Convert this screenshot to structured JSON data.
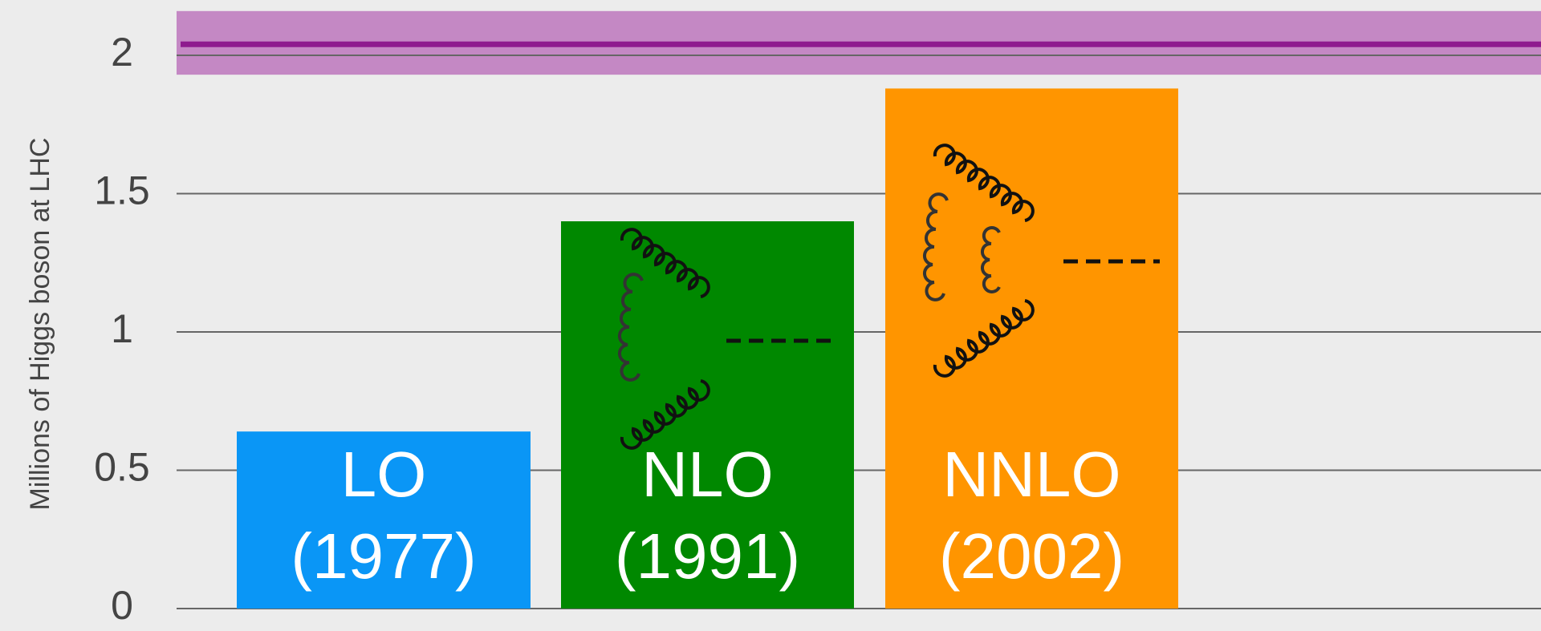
{
  "chart_data": {
    "type": "bar",
    "y_label": "Millions of Higgs boson at LHC",
    "categories": [
      "LO",
      "NLO",
      "NNLO"
    ],
    "sublabels": [
      "(1977)",
      "(1991)",
      "(2002)"
    ],
    "values": [
      0.64,
      1.4,
      1.88
    ],
    "colors": [
      "#0a96f6",
      "#008800",
      "#ff9500"
    ],
    "ylim": [
      0,
      2.2
    ],
    "yticks": [
      0,
      0.5,
      1,
      1.5,
      2
    ],
    "grid": true,
    "reference": {
      "value": 2.04,
      "low": 1.93,
      "high": 2.16,
      "color": "#8e1b8e",
      "band_color": "#c488c4"
    }
  }
}
